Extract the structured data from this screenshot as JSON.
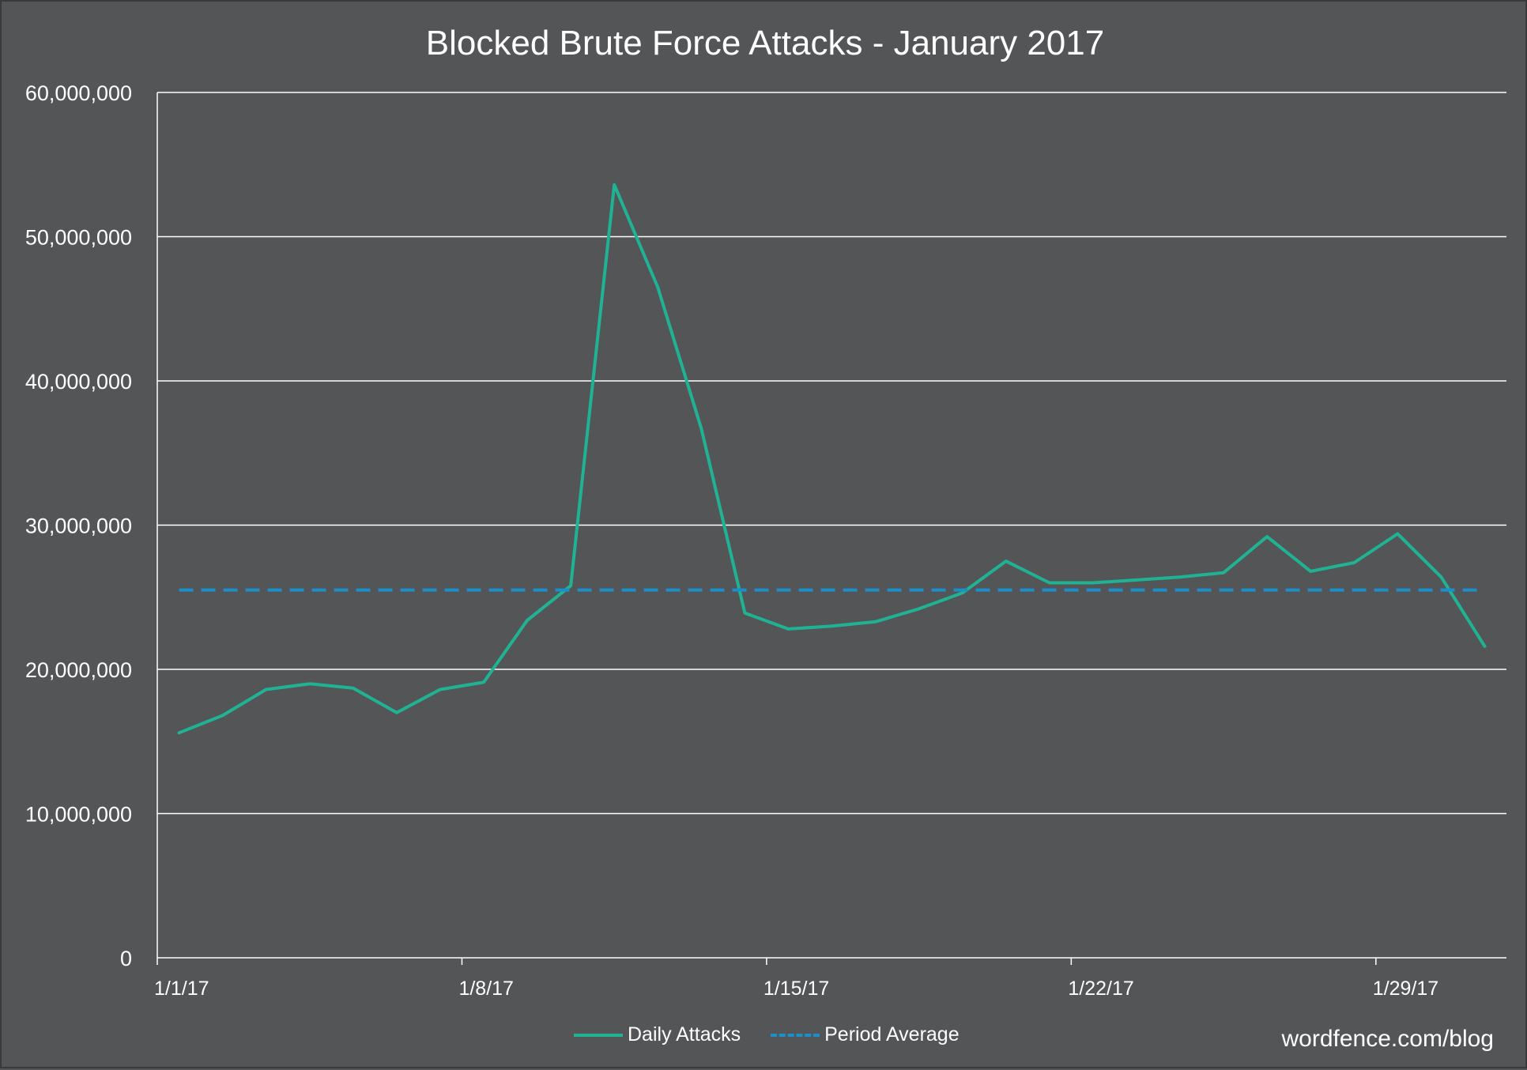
{
  "chart_data": {
    "type": "line",
    "title": "Blocked Brute Force Attacks - January 2017",
    "xlabel": "",
    "ylabel": "",
    "ylim": [
      0,
      60000000
    ],
    "yticks": [
      0,
      10000000,
      20000000,
      30000000,
      40000000,
      50000000,
      60000000
    ],
    "ytick_labels": [
      "0",
      "10,000,000",
      "20,000,000",
      "30,000,000",
      "40,000,000",
      "50,000,000",
      "60,000,000"
    ],
    "xtick_labels": [
      "1/1/17",
      "1/8/17",
      "1/15/17",
      "1/22/17",
      "1/29/17"
    ],
    "xtick_days": [
      1,
      8,
      15,
      22,
      29
    ],
    "x": [
      "1/1/17",
      "1/2/17",
      "1/3/17",
      "1/4/17",
      "1/5/17",
      "1/6/17",
      "1/7/17",
      "1/8/17",
      "1/9/17",
      "1/10/17",
      "1/11/17",
      "1/12/17",
      "1/13/17",
      "1/14/17",
      "1/15/17",
      "1/16/17",
      "1/17/17",
      "1/18/17",
      "1/19/17",
      "1/20/17",
      "1/21/17",
      "1/22/17",
      "1/23/17",
      "1/24/17",
      "1/25/17",
      "1/26/17",
      "1/27/17",
      "1/28/17",
      "1/29/17",
      "1/30/17",
      "1/31/17"
    ],
    "grid": true,
    "legend_position": "bottom",
    "series": [
      {
        "name": "Daily Attacks",
        "color": "#1fb394",
        "style": "solid",
        "values": [
          15600000,
          16800000,
          18600000,
          19000000,
          18700000,
          17000000,
          18600000,
          19100000,
          23400000,
          25800000,
          53600000,
          46500000,
          36700000,
          23900000,
          22800000,
          23000000,
          23300000,
          24200000,
          25300000,
          27500000,
          26000000,
          26000000,
          26200000,
          26400000,
          26700000,
          29200000,
          26800000,
          27400000,
          29400000,
          26400000,
          21600000
        ]
      },
      {
        "name": "Period Average",
        "color": "#1a8fc9",
        "style": "dashed",
        "values": [
          25500000,
          25500000,
          25500000,
          25500000,
          25500000,
          25500000,
          25500000,
          25500000,
          25500000,
          25500000,
          25500000,
          25500000,
          25500000,
          25500000,
          25500000,
          25500000,
          25500000,
          25500000,
          25500000,
          25500000,
          25500000,
          25500000,
          25500000,
          25500000,
          25500000,
          25500000,
          25500000,
          25500000,
          25500000,
          25500000,
          25500000
        ]
      }
    ]
  },
  "watermark": "wordfence.com/blog"
}
